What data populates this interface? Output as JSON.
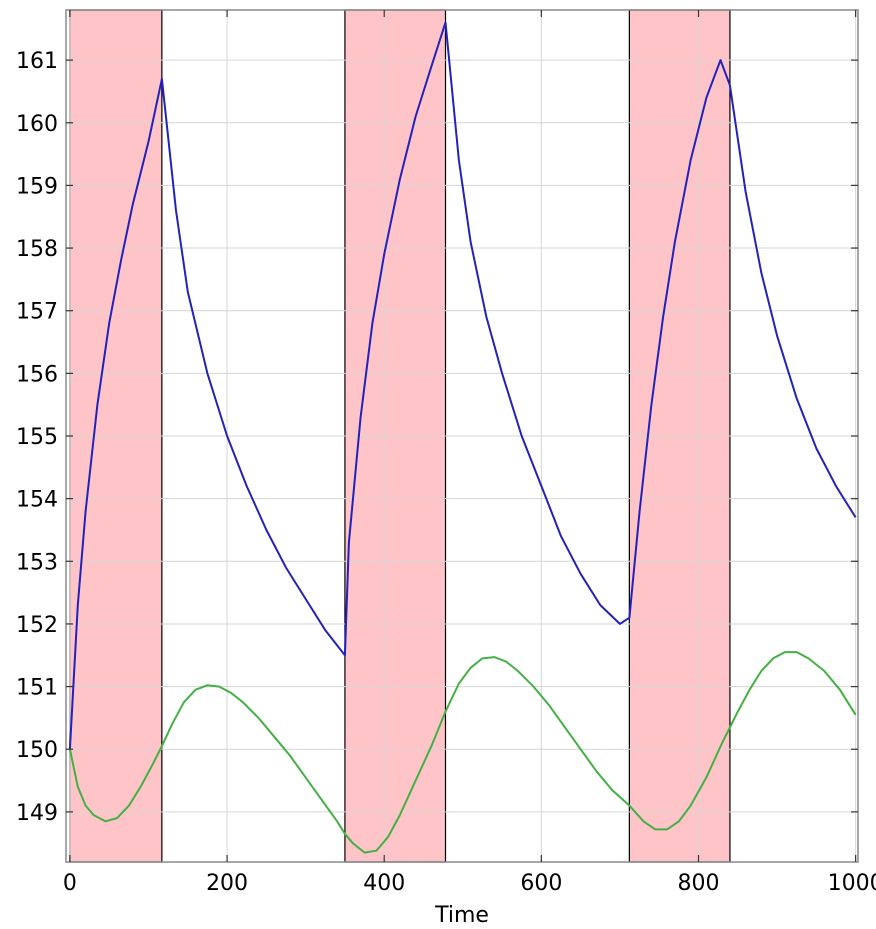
{
  "chart_data": {
    "type": "line",
    "title": "",
    "xlabel": "Time",
    "ylabel": "",
    "xlim": [
      -5,
      1003
    ],
    "ylim": [
      148.2,
      161.8
    ],
    "xticks": [
      0,
      200,
      400,
      600,
      800,
      1000
    ],
    "yticks": [
      149,
      150,
      151,
      152,
      153,
      154,
      155,
      156,
      157,
      158,
      159,
      160,
      161
    ],
    "grid": true,
    "legend": "none",
    "shaded_regions": [
      {
        "x0": 0,
        "x1": 117
      },
      {
        "x0": 350,
        "x1": 478
      },
      {
        "x0": 712,
        "x1": 840
      }
    ],
    "series": [
      {
        "color": "#2222bb",
        "x": [
          0,
          10,
          20,
          35,
          50,
          65,
          80,
          100,
          117,
          135,
          150,
          175,
          200,
          225,
          250,
          275,
          300,
          325,
          350,
          355,
          370,
          385,
          400,
          420,
          440,
          460,
          478,
          495,
          510,
          530,
          550,
          575,
          600,
          625,
          650,
          675,
          700,
          712,
          725,
          740,
          755,
          770,
          790,
          810,
          828,
          840,
          860,
          880,
          900,
          925,
          950,
          975,
          1000
        ],
        "y": [
          150.0,
          152.3,
          153.8,
          155.5,
          156.8,
          157.8,
          158.7,
          159.7,
          160.7,
          158.6,
          157.3,
          156.0,
          155.0,
          154.2,
          153.5,
          152.9,
          152.4,
          151.9,
          151.5,
          153.3,
          155.3,
          156.8,
          157.9,
          159.1,
          160.1,
          160.9,
          161.6,
          159.4,
          158.1,
          156.9,
          156.0,
          155.0,
          154.2,
          153.4,
          152.8,
          152.3,
          152.0,
          152.1,
          153.8,
          155.5,
          156.9,
          158.1,
          159.4,
          160.4,
          161.0,
          160.6,
          158.9,
          157.6,
          156.6,
          155.6,
          154.8,
          154.2,
          153.7
        ]
      },
      {
        "color": "#44b044",
        "x": [
          0,
          10,
          20,
          30,
          45,
          60,
          75,
          90,
          105,
          117,
          130,
          145,
          160,
          175,
          190,
          205,
          220,
          240,
          260,
          280,
          300,
          320,
          340,
          350,
          360,
          375,
          390,
          405,
          420,
          440,
          460,
          478,
          495,
          510,
          525,
          540,
          555,
          570,
          590,
          610,
          630,
          650,
          670,
          690,
          712,
          730,
          745,
          760,
          775,
          790,
          810,
          830,
          850,
          865,
          880,
          895,
          910,
          925,
          940,
          960,
          980,
          1000
        ],
        "y": [
          150.0,
          149.4,
          149.1,
          148.95,
          148.85,
          148.9,
          149.1,
          149.4,
          149.75,
          150.05,
          150.4,
          150.75,
          150.95,
          151.02,
          151.0,
          150.9,
          150.75,
          150.5,
          150.2,
          149.9,
          149.55,
          149.2,
          148.85,
          148.65,
          148.5,
          148.35,
          148.38,
          148.6,
          148.95,
          149.5,
          150.05,
          150.6,
          151.05,
          151.3,
          151.45,
          151.47,
          151.4,
          151.25,
          151.0,
          150.7,
          150.35,
          150.0,
          149.65,
          149.35,
          149.1,
          148.85,
          148.72,
          148.72,
          148.85,
          149.1,
          149.55,
          150.1,
          150.6,
          150.95,
          151.25,
          151.45,
          151.55,
          151.55,
          151.45,
          151.25,
          150.95,
          150.55
        ]
      }
    ]
  }
}
